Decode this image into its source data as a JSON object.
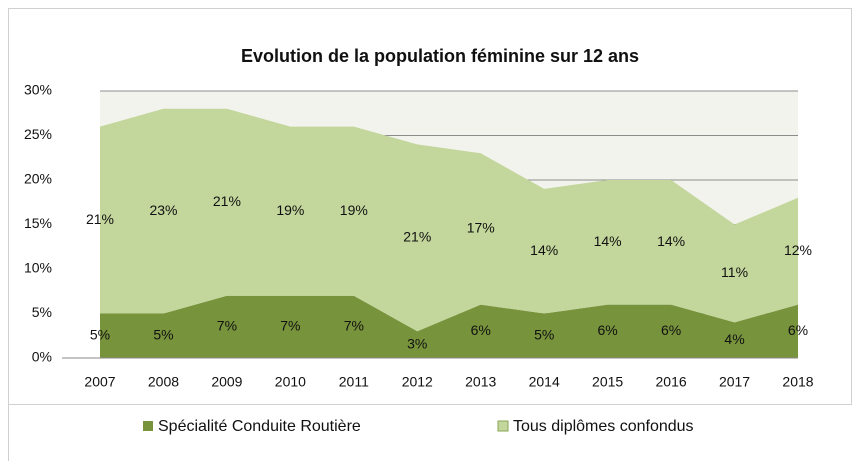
{
  "chart_data": {
    "type": "stacked_area",
    "title": "Evolution de la population féminine sur 12 ans",
    "categories": [
      "2007",
      "2008",
      "2009",
      "2010",
      "2011",
      "2012",
      "2013",
      "2014",
      "2015",
      "2016",
      "2017",
      "2018"
    ],
    "series": [
      {
        "name": "Spécialité Conduite Routière",
        "color": "#77933c",
        "values": [
          5,
          5,
          7,
          7,
          7,
          3,
          6,
          5,
          6,
          6,
          4,
          6
        ],
        "value_labels": [
          "5%",
          "5%",
          "7%",
          "7%",
          "7%",
          "3%",
          "6%",
          "5%",
          "6%",
          "6%",
          "4%",
          "6%"
        ]
      },
      {
        "name": "Tous diplômes confondus",
        "color": "#c3d69b",
        "values": [
          21,
          23,
          21,
          19,
          19,
          21,
          17,
          14,
          14,
          14,
          11,
          12
        ],
        "value_labels": [
          "21%",
          "23%",
          "21%",
          "19%",
          "19%",
          "21%",
          "17%",
          "14%",
          "14%",
          "14%",
          "11%",
          "12%"
        ]
      }
    ],
    "ylim": [
      0,
      30
    ],
    "yticks": [
      {
        "value": 0,
        "label": "0%"
      },
      {
        "value": 5,
        "label": "5%"
      },
      {
        "value": 10,
        "label": "10%"
      },
      {
        "value": 15,
        "label": "15%"
      },
      {
        "value": 20,
        "label": "20%"
      },
      {
        "value": 25,
        "label": "25%"
      },
      {
        "value": 30,
        "label": "30%"
      }
    ],
    "grid": true,
    "legend": "bottom"
  }
}
